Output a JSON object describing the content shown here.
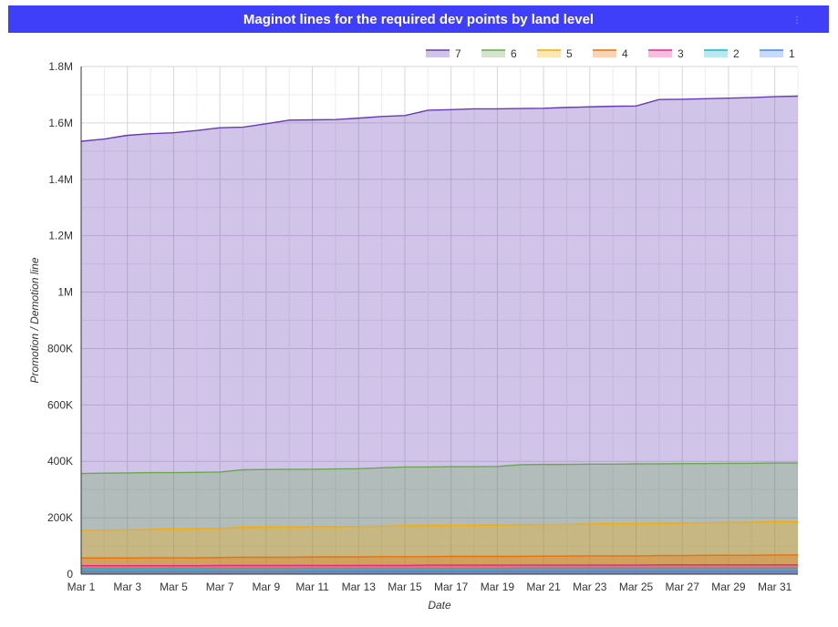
{
  "title": "Maginot lines for the required dev points by land level",
  "menu_glyph": "⋮",
  "chart_data": {
    "type": "area",
    "title": "Maginot lines for the required dev points by land level",
    "xlabel": "Date",
    "ylabel": "Promotion / Demotion line",
    "ylim": [
      0,
      1800000
    ],
    "y_ticks": [
      0,
      200000,
      400000,
      600000,
      800000,
      1000000,
      1200000,
      1400000,
      1600000,
      1800000
    ],
    "y_tick_labels": [
      "0",
      "200K",
      "400K",
      "600K",
      "800K",
      "1M",
      "1.2M",
      "1.4M",
      "1.6M",
      "1.8M"
    ],
    "x": [
      "Mar 1",
      "Mar 2",
      "Mar 3",
      "Mar 4",
      "Mar 5",
      "Mar 6",
      "Mar 7",
      "Mar 8",
      "Mar 9",
      "Mar 10",
      "Mar 11",
      "Mar 12",
      "Mar 13",
      "Mar 14",
      "Mar 15",
      "Mar 16",
      "Mar 17",
      "Mar 18",
      "Mar 19",
      "Mar 20",
      "Mar 21",
      "Mar 22",
      "Mar 23",
      "Mar 24",
      "Mar 25",
      "Mar 26",
      "Mar 27",
      "Mar 28",
      "Mar 29",
      "Mar 30",
      "Mar 31",
      "Apr 1"
    ],
    "x_tick_labels": [
      "Mar 1",
      "Mar 3",
      "Mar 5",
      "Mar 7",
      "Mar 9",
      "Mar 11",
      "Mar 13",
      "Mar 15",
      "Mar 17",
      "Mar 19",
      "Mar 21",
      "Mar 23",
      "Mar 25",
      "Mar 27",
      "Mar 29",
      "Mar 31"
    ],
    "grid": true,
    "legend_position": "top-right",
    "series": [
      {
        "name": "7",
        "color": "#673ab7",
        "fill": "#cfc4e8",
        "values": [
          1535000,
          1543000,
          1556000,
          1562000,
          1565000,
          1573000,
          1583000,
          1585000,
          1597000,
          1610000,
          1611000,
          1612000,
          1617000,
          1623000,
          1626000,
          1645000,
          1647000,
          1650000,
          1650000,
          1651000,
          1652000,
          1655000,
          1657000,
          1659000,
          1660000,
          1683000,
          1684000,
          1686000,
          1688000,
          1690000,
          1693000,
          1695000
        ]
      },
      {
        "name": "6",
        "color": "#6aa84f",
        "fill": "#cce3c3",
        "values": [
          357000,
          358000,
          359000,
          360000,
          360000,
          361000,
          362000,
          370000,
          371000,
          372000,
          372000,
          373000,
          374000,
          377000,
          380000,
          380000,
          381000,
          381000,
          382000,
          388000,
          389000,
          389000,
          390000,
          390000,
          391000,
          391000,
          392000,
          392000,
          393000,
          393000,
          394000,
          394000
        ]
      },
      {
        "name": "5",
        "color": "#f9ab00",
        "fill": "#fbdca1",
        "values": [
          155000,
          156000,
          157000,
          158000,
          160000,
          161000,
          162000,
          166000,
          167000,
          167000,
          168000,
          168000,
          169000,
          170000,
          172000,
          172000,
          173000,
          173000,
          174000,
          175000,
          176000,
          176000,
          178000,
          179000,
          179000,
          180000,
          181000,
          182000,
          183000,
          184000,
          185000,
          186000
        ]
      },
      {
        "name": "4",
        "color": "#e8710a",
        "fill": "#f5c9a4",
        "values": [
          57000,
          57000,
          57000,
          58000,
          58000,
          58000,
          59000,
          60000,
          60000,
          60000,
          61000,
          61000,
          61000,
          62000,
          62000,
          62000,
          63000,
          63000,
          63000,
          63000,
          64000,
          64000,
          65000,
          65000,
          65000,
          66000,
          66000,
          67000,
          67000,
          67000,
          68000,
          68000
        ]
      },
      {
        "name": "3",
        "color": "#e52592",
        "fill": "#f6b5d7",
        "values": [
          30000,
          30000,
          30000,
          30000,
          30000,
          30000,
          31000,
          31000,
          31000,
          31000,
          31000,
          31000,
          31000,
          31000,
          31000,
          32000,
          32000,
          32000,
          32000,
          32000,
          32000,
          32000,
          32000,
          32000,
          32000,
          33000,
          33000,
          33000,
          33000,
          33000,
          33000,
          33000
        ]
      },
      {
        "name": "2",
        "color": "#12b5cb",
        "fill": "#a7e3ec",
        "values": [
          19000,
          19000,
          19000,
          19000,
          19000,
          19000,
          20000,
          20000,
          20000,
          20000,
          20000,
          20000,
          20000,
          20000,
          20000,
          20000,
          20000,
          20000,
          20000,
          21000,
          21000,
          21000,
          21000,
          21000,
          21000,
          21000,
          21000,
          21000,
          21000,
          21000,
          21000,
          21000
        ]
      },
      {
        "name": "1",
        "color": "#4285f4",
        "fill": "#b4cffb",
        "values": [
          9000,
          9000,
          9000,
          9000,
          9000,
          9000,
          9000,
          9000,
          9000,
          9000,
          10000,
          10000,
          10000,
          10000,
          10000,
          10000,
          10000,
          10000,
          10000,
          10000,
          10000,
          10000,
          10000,
          10000,
          10000,
          10000,
          10000,
          10000,
          10000,
          10000,
          10000,
          10000
        ]
      }
    ]
  }
}
